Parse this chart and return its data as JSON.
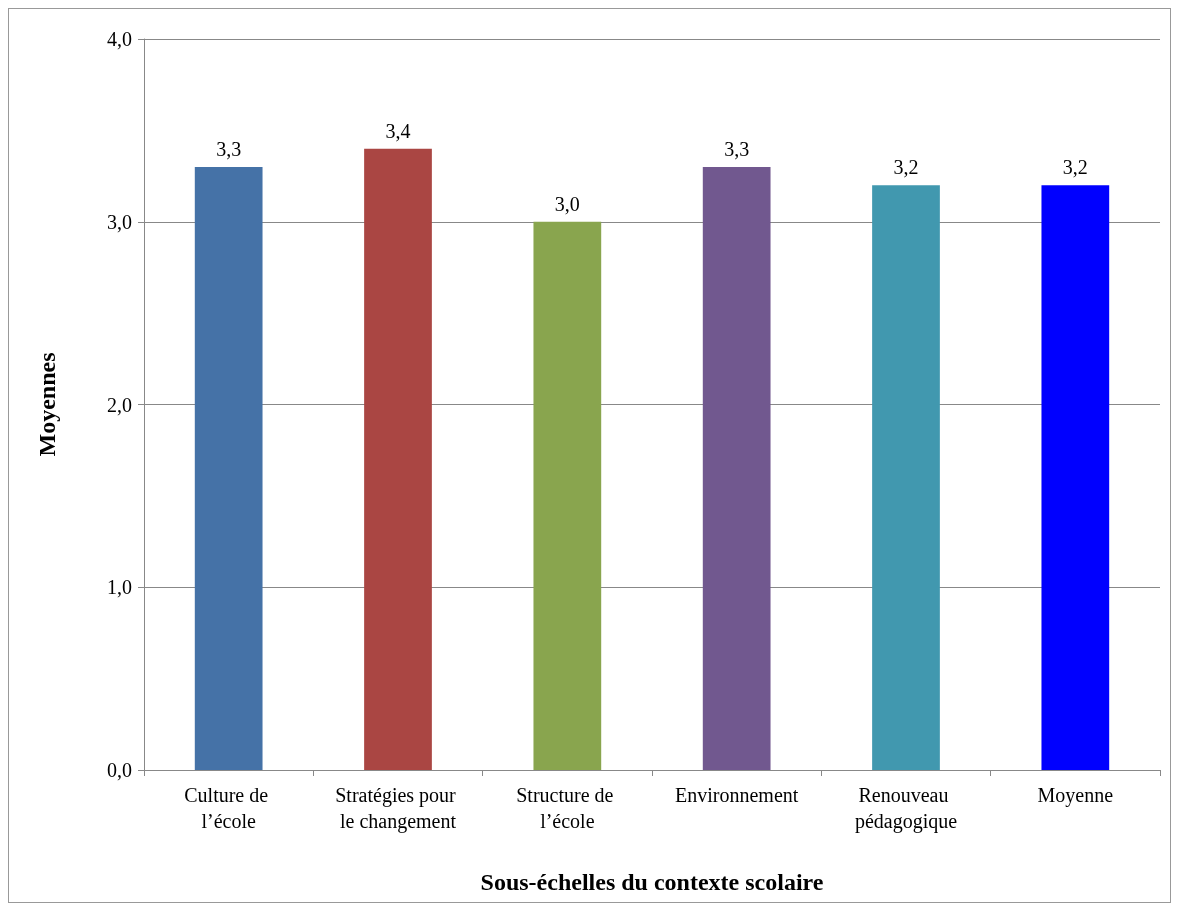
{
  "chart_data": {
    "type": "bar",
    "xlabel": "Sous-échelles du contexte scolaire",
    "ylabel": "Moyennes",
    "categories": [
      "Culture de l’école",
      "Stratégies pour le changement",
      "Structure de l’école",
      "Environnement",
      "Renouveau pédagogique",
      "Moyenne"
    ],
    "values": [
      3.3,
      3.4,
      3.0,
      3.3,
      3.2,
      3.2
    ],
    "colors": [
      "#4572a7",
      "#aa4643",
      "#89a54e",
      "#71588f",
      "#4198af",
      "#0000ff"
    ],
    "value_labels": [
      "3,3",
      "3,4",
      "3,0",
      "3,3",
      "3,2",
      "3,2"
    ],
    "ylim": [
      0,
      4
    ],
    "yticks": [
      {
        "value": 0,
        "label": "0,0"
      },
      {
        "value": 1,
        "label": "1,0"
      },
      {
        "value": 2,
        "label": "2,0"
      },
      {
        "value": 3,
        "label": "3,0"
      },
      {
        "value": 4,
        "label": "4,0"
      }
    ],
    "grid": "y"
  }
}
